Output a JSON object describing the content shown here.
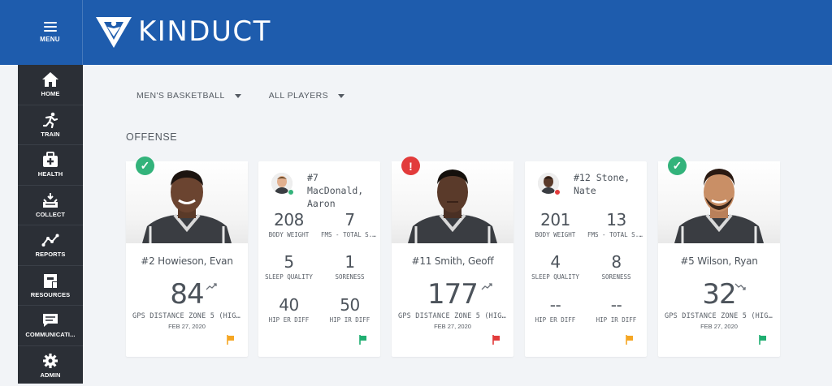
{
  "app": {
    "name": "KINDUCT",
    "menu_label": "MENU"
  },
  "sidebar": {
    "items": [
      {
        "label": "HOME",
        "icon": "home-icon"
      },
      {
        "label": "TRAIN",
        "icon": "run-icon"
      },
      {
        "label": "HEALTH",
        "icon": "medkit-icon"
      },
      {
        "label": "COLLECT",
        "icon": "collect-icon"
      },
      {
        "label": "REPORTS",
        "icon": "reports-icon"
      },
      {
        "label": "RESOURCES",
        "icon": "resources-icon"
      },
      {
        "label": "COMMUNICATI...",
        "icon": "chat-icon"
      },
      {
        "label": "ADMIN",
        "icon": "gear-icon"
      }
    ]
  },
  "filters": {
    "team": "MEN'S BASKETBALL",
    "players": "ALL PLAYERS"
  },
  "section": {
    "title": "OFFENSE"
  },
  "colors": {
    "brand": "#1e5cad",
    "ok": "#33b37b",
    "alert": "#e23b3b",
    "warn_flag": "#f5a623",
    "ok_flag": "#1fae71",
    "red_flag": "#e23b3b"
  },
  "cards": [
    {
      "type": "photo",
      "status": "ok",
      "status_glyph": "✓",
      "name": "#2 Howieson, Evan",
      "value": "84",
      "trend": "up",
      "metric": "GPS DISTANCE ZONE 5 (HIGH...",
      "date": "FEB 27, 2020",
      "flag": "warn"
    },
    {
      "type": "stats",
      "name": "#7 MacDonald, Aaron",
      "presence": "ok",
      "stats": [
        {
          "value": "208",
          "label": "BODY WEIGHT"
        },
        {
          "value": "7",
          "label": "FMS - TOTAL S..."
        },
        {
          "value": "5",
          "label": "SLEEP QUALITY"
        },
        {
          "value": "1",
          "label": "SORENESS"
        },
        {
          "value": "40",
          "label": "HIP ER DIFF"
        },
        {
          "value": "50",
          "label": "HIP IR DIFF"
        }
      ],
      "flag": "ok"
    },
    {
      "type": "photo",
      "status": "alert",
      "status_glyph": "!",
      "name": "#11 Smith, Geoff",
      "value": "177",
      "trend": "up",
      "metric": "GPS DISTANCE ZONE 5 (HIGH...",
      "date": "FEB 27, 2020",
      "flag": "red"
    },
    {
      "type": "stats",
      "name": "#12 Stone, Nate",
      "presence": "alert",
      "stats": [
        {
          "value": "201",
          "label": "BODY WEIGHT"
        },
        {
          "value": "13",
          "label": "FMS - TOTAL S..."
        },
        {
          "value": "4",
          "label": "SLEEP QUALITY"
        },
        {
          "value": "8",
          "label": "SORENESS"
        },
        {
          "value": "--",
          "label": "HIP ER DIFF"
        },
        {
          "value": "--",
          "label": "HIP IR DIFF"
        }
      ],
      "flag": "warn"
    },
    {
      "type": "photo",
      "status": "ok",
      "status_glyph": "✓",
      "name": "#5 Wilson, Ryan",
      "value": "32",
      "trend": "down",
      "metric": "GPS DISTANCE ZONE 5 (HIGH...",
      "date": "FEB 27, 2020",
      "flag": "ok"
    }
  ]
}
